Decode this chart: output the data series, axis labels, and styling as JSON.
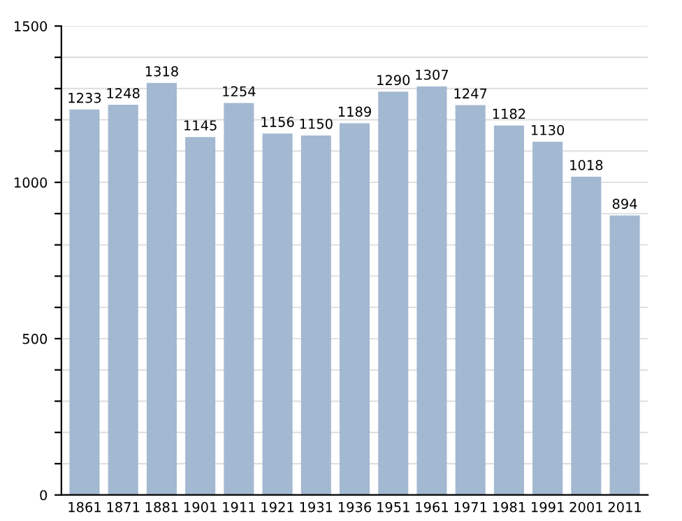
{
  "chart_data": {
    "type": "bar",
    "categories": [
      "1861",
      "1871",
      "1881",
      "1901",
      "1911",
      "1921",
      "1931",
      "1936",
      "1951",
      "1961",
      "1971",
      "1981",
      "1991",
      "2001",
      "2011"
    ],
    "values": [
      1233,
      1248,
      1318,
      1145,
      1254,
      1156,
      1150,
      1189,
      1290,
      1307,
      1247,
      1182,
      1130,
      1018,
      894
    ],
    "color": "#a3b8d1",
    "ylim": [
      0,
      1500
    ],
    "yticks": [
      0,
      {
        "value": 100,
        "label": null
      },
      {
        "value": 200,
        "label": null
      },
      {
        "value": 300,
        "label": null
      },
      {
        "value": 400,
        "label": null
      },
      500,
      {
        "value": 600,
        "label": null
      },
      {
        "value": 700,
        "label": null
      },
      {
        "value": 800,
        "label": null
      },
      {
        "value": 900,
        "label": null
      },
      1000,
      {
        "value": 1100,
        "label": null
      },
      {
        "value": 1200,
        "label": null
      },
      {
        "value": 1300,
        "label": null
      },
      {
        "value": 1400,
        "label": null
      },
      1500
    ],
    "grid": "y",
    "data_labels": true
  }
}
